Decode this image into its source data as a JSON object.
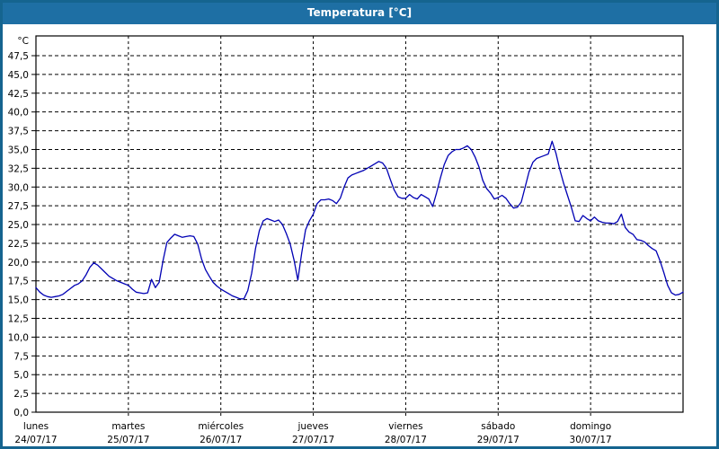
{
  "window": {
    "title": "Temperatura [°C]"
  },
  "colors": {
    "titlebar_bg": "#1e6fa4",
    "titlebar_text": "#ffffff",
    "frame_border": "#15648f",
    "plot_bg": "#ffffff",
    "plot_border": "#000000",
    "grid": "#000000",
    "plot_line": "#0000b4",
    "label_text": "#000000"
  },
  "chart_data": {
    "type": "line",
    "title": "Temperatura [°C]",
    "y_unit_label": "°C",
    "ylim": [
      0,
      47.5
    ],
    "ytick_step": 2.5,
    "ytick_labels": [
      "0,0",
      "2,5",
      "5,0",
      "7,5",
      "10,0",
      "12,5",
      "15,0",
      "17,5",
      "20,0",
      "22,5",
      "25,0",
      "27,5",
      "30,0",
      "32,5",
      "35,0",
      "37,5",
      "40,0",
      "42,5",
      "45,0",
      "47,5"
    ],
    "grid": "dashed",
    "legend": "none",
    "x_days": [
      {
        "name": "lunes",
        "date": "24/07/17"
      },
      {
        "name": "martes",
        "date": "25/07/17"
      },
      {
        "name": "miércoles",
        "date": "26/07/17"
      },
      {
        "name": "jueves",
        "date": "27/07/17"
      },
      {
        "name": "viernes",
        "date": "28/07/17"
      },
      {
        "name": "sábado",
        "date": "29/07/17"
      },
      {
        "name": "domingo",
        "date": "30/07/17"
      }
    ],
    "samples_per_day": 24,
    "series": [
      {
        "name": "Temperatura",
        "unit": "°C",
        "hourly_values": [
          16.6,
          16.0,
          15.6,
          15.4,
          15.3,
          15.4,
          15.5,
          15.7,
          16.1,
          16.5,
          16.9,
          17.1,
          17.5,
          18.3,
          19.3,
          19.9,
          19.6,
          19.1,
          18.6,
          18.1,
          17.8,
          17.5,
          17.3,
          17.1,
          16.9,
          16.4,
          16.0,
          15.9,
          15.8,
          15.9,
          17.7,
          16.6,
          17.3,
          20.2,
          22.6,
          23.2,
          23.7,
          23.5,
          23.3,
          23.4,
          23.5,
          23.4,
          22.4,
          20.4,
          19.0,
          18.1,
          17.3,
          16.8,
          16.4,
          16.1,
          15.8,
          15.5,
          15.3,
          15.1,
          15.1,
          16.2,
          18.5,
          21.8,
          24.2,
          25.5,
          25.8,
          25.6,
          25.4,
          25.6,
          25.0,
          23.8,
          22.4,
          20.3,
          17.6,
          21.2,
          24.3,
          25.5,
          26.4,
          27.8,
          28.3,
          28.3,
          28.4,
          28.2,
          27.8,
          28.5,
          30.0,
          31.2,
          31.6,
          31.8,
          32.0,
          32.2,
          32.5,
          32.8,
          33.1,
          33.4,
          33.2,
          32.5,
          31.0,
          29.6,
          28.7,
          28.5,
          28.5,
          29.0,
          28.6,
          28.4,
          29.0,
          28.7,
          28.4,
          27.4,
          29.2,
          31.2,
          33.0,
          34.2,
          34.7,
          35.0,
          35.0,
          35.2,
          35.5,
          35.0,
          34.0,
          32.7,
          30.9,
          29.8,
          29.2,
          28.4,
          28.6,
          28.9,
          28.5,
          27.8,
          27.2,
          27.3,
          28.0,
          30.0,
          32.0,
          33.3,
          33.8,
          34.0,
          34.2,
          34.4,
          36.1,
          34.5,
          32.3,
          30.5,
          28.9,
          27.3,
          25.5,
          25.4,
          26.2,
          25.8,
          25.5,
          26.0,
          25.5,
          25.3,
          25.2,
          25.2,
          25.1,
          25.4,
          26.4,
          24.6,
          24.0,
          23.7,
          23.0,
          22.9,
          22.7,
          22.2,
          21.8,
          21.5,
          20.2,
          18.6,
          16.9,
          15.9,
          15.6,
          15.7,
          16.0
        ]
      }
    ]
  }
}
